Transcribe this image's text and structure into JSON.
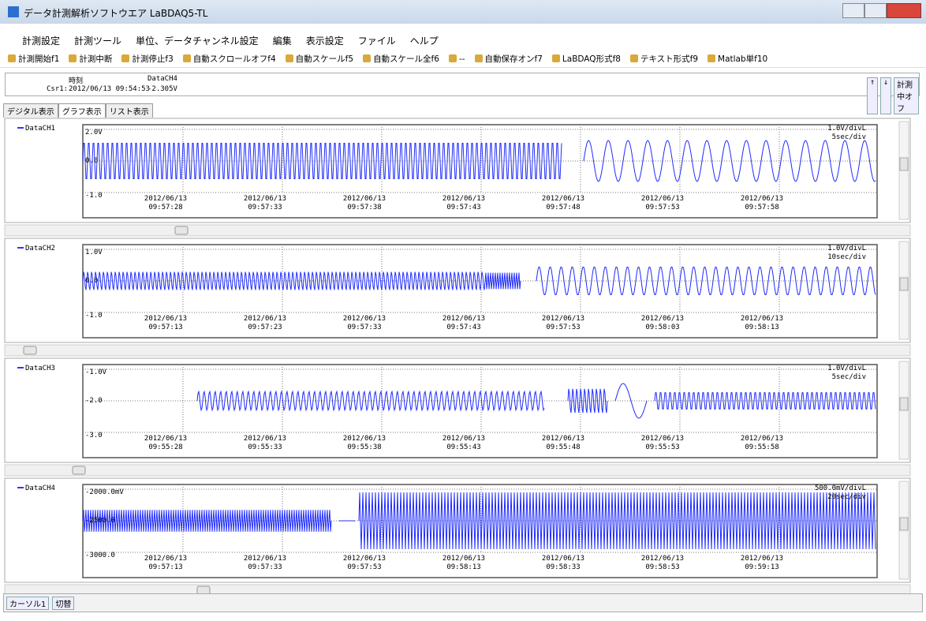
{
  "window": {
    "title": "データ計測解析ソフトウエア LaBDAQ5-TL"
  },
  "menu": [
    "計測設定",
    "計測ツール",
    "単位、データチャンネル設定",
    "編集",
    "表示設定",
    "ファイル",
    "ヘルプ"
  ],
  "toolbar": [
    "計測開始f1",
    "計測中断",
    "計測停止f3",
    "自動スクロールオフf4",
    "自動スケールf5",
    "自動スケール全f6",
    "--",
    "自動保存オンf7",
    "LaBDAQ形式f8",
    "テキスト形式f9",
    "Matlab単f10"
  ],
  "cursor_info": {
    "time_header": "時刻",
    "channel_header": "DataCH4",
    "label": "Csr1:",
    "time": "2012/06/13 09:54:53",
    "value": "-2.305V"
  },
  "right_buttons": [
    "↑",
    "↓",
    "計測中オフ"
  ],
  "tabs": [
    "デジタル表示",
    "グラフ表示",
    "リスト表示"
  ],
  "panels": [
    {
      "name": "DataCH1",
      "y_labels": [
        "2.0V",
        "0.0",
        "-1.0"
      ],
      "scale": "1.0V/divL",
      "time_div": "5sec/div",
      "date": "2012/06/13",
      "times": [
        "09:57:28",
        "09:57:33",
        "09:57:38",
        "09:57:43",
        "09:57:48",
        "09:57:53",
        "09:57:58"
      ]
    },
    {
      "name": "DataCH2",
      "y_labels": [
        "1.0V",
        "0.0",
        "-1.0"
      ],
      "scale": "1.0V/divL",
      "time_div": "10sec/div",
      "date": "2012/06/13",
      "times": [
        "09:57:13",
        "09:57:23",
        "09:57:33",
        "09:57:43",
        "09:57:53",
        "09:58:03",
        "09:58:13"
      ]
    },
    {
      "name": "DataCH3",
      "y_labels": [
        "-1.0V",
        "-2.0",
        "-3.0"
      ],
      "scale": "1.0V/divL",
      "time_div": "5sec/div",
      "date": "2012/06/13",
      "times": [
        "09:55:28",
        "09:55:33",
        "09:55:38",
        "09:55:43",
        "09:55:48",
        "09:55:53",
        "09:55:58"
      ]
    },
    {
      "name": "DataCH4",
      "y_labels": [
        "-2000.0mV",
        "-2500.0",
        "-3000.0"
      ],
      "scale": "500.0mV/divL",
      "time_div": "20sec/div",
      "date": "2012/06/13",
      "times": [
        "09:57:13",
        "09:57:33",
        "09:57:53",
        "09:58:13",
        "09:58:33",
        "09:58:53",
        "09:59:13"
      ]
    }
  ],
  "status_bar": [
    "カーソル1",
    "切替"
  ]
}
